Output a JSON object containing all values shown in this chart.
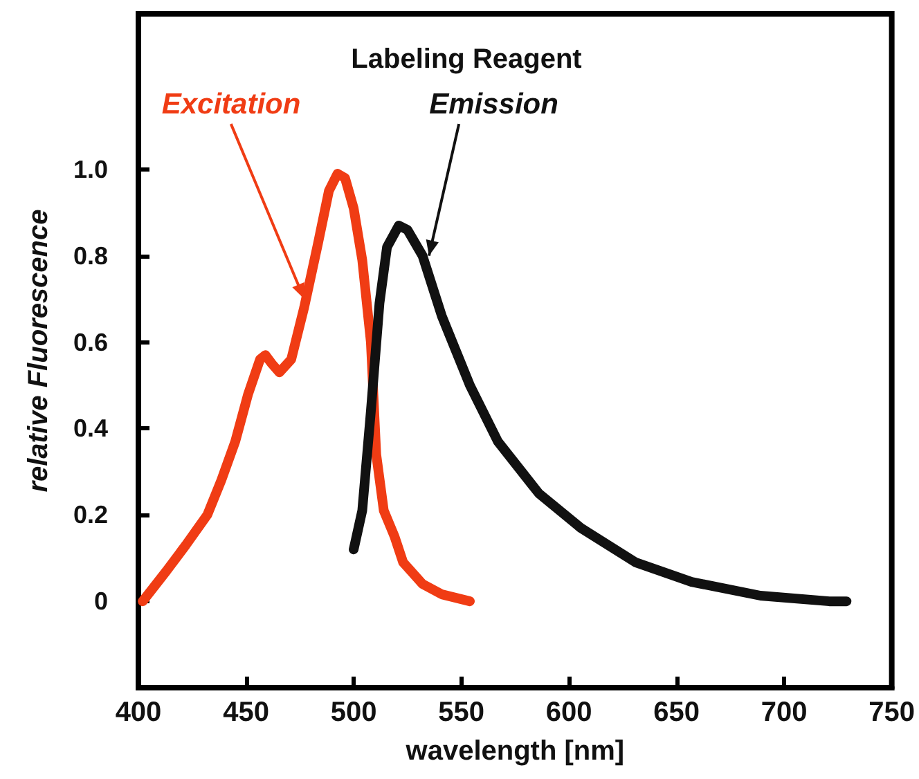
{
  "chart_data": {
    "type": "line",
    "title": "Labeling Reagent",
    "xlabel": "wavelength [nm]",
    "ylabel": "relative Fluorescence",
    "xlim": [
      400,
      750
    ],
    "xticks": [
      400,
      450,
      500,
      550,
      600,
      650,
      700,
      750
    ],
    "ylim": [
      -0.2,
      1.36
    ],
    "yticks": [
      0,
      0.2,
      0.4,
      0.6,
      0.8,
      {
        "value": 1,
        "label": "1.0"
      }
    ],
    "grid": false,
    "legend": false,
    "marker": "none",
    "line_style": "solid",
    "series": [
      {
        "name": "Excitation",
        "color": "#f03c14",
        "x": [
          402,
          413,
          422,
          432,
          438.5,
          445,
          451,
          456.5,
          459,
          462,
          465.5,
          471,
          477,
          483.5,
          488.5,
          492.5,
          496,
          500,
          504,
          508,
          510.5,
          514,
          519,
          523,
          532,
          541,
          554
        ],
        "values": [
          0,
          0.07,
          0.13,
          0.2,
          0.28,
          0.37,
          0.48,
          0.56,
          0.57,
          0.55,
          0.53,
          0.56,
          0.68,
          0.83,
          0.95,
          0.99,
          0.98,
          0.91,
          0.79,
          0.6,
          0.34,
          0.21,
          0.15,
          0.09,
          0.04,
          0.016,
          0
        ]
      },
      {
        "name": "Emission",
        "color": "#111111",
        "x": [
          500,
          504,
          508,
          512,
          515.5,
          521,
          525,
          532,
          541,
          554,
          567,
          586,
          605.5,
          631,
          657,
          689,
          721,
          729
        ],
        "values": [
          0.12,
          0.21,
          0.44,
          0.69,
          0.82,
          0.87,
          0.86,
          0.8,
          0.66,
          0.5,
          0.37,
          0.25,
          0.17,
          0.09,
          0.045,
          0.013,
          0,
          0
        ]
      }
    ]
  }
}
